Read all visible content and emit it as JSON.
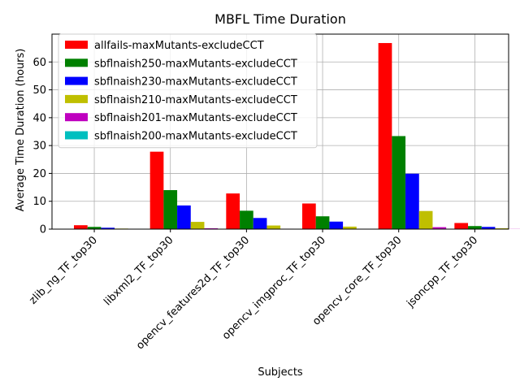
{
  "chart_data": {
    "type": "bar",
    "title": "MBFL Time Duration",
    "xlabel": "Subjects",
    "ylabel": "Average Time Duration (hours)",
    "ylim": [
      0,
      70
    ],
    "yticks": [
      0,
      10,
      20,
      30,
      40,
      50,
      60
    ],
    "grid": true,
    "legend_position": "top-left",
    "categories": [
      "zlib_ng_TF_top30",
      "libxml2_TF_top30",
      "opencv_features2d_TF_top30",
      "opencv_imgproc_TF_top30",
      "opencv_core_TF_top30",
      "jsoncpp_TF_top30"
    ],
    "series": [
      {
        "name": "allfails-maxMutants-excludeCCT",
        "color": "#ff0000",
        "values": [
          1.4,
          27.8,
          12.8,
          9.2,
          66.8,
          2.2
        ]
      },
      {
        "name": "sbflnaish250-maxMutants-excludeCCT",
        "color": "#008000",
        "values": [
          0.8,
          14.0,
          6.6,
          4.6,
          33.4,
          1.1
        ]
      },
      {
        "name": "sbflnaish230-maxMutants-excludeCCT",
        "color": "#0000ff",
        "values": [
          0.5,
          8.5,
          4.0,
          2.7,
          19.9,
          0.8
        ]
      },
      {
        "name": "sbflnaish210-maxMutants-excludeCCT",
        "color": "#bfbf00",
        "values": [
          0.2,
          2.6,
          1.3,
          0.9,
          6.5,
          0.3
        ]
      },
      {
        "name": "sbflnaish201-maxMutants-excludeCCT",
        "color": "#bf00bf",
        "values": [
          0.05,
          0.3,
          0.15,
          0.1,
          0.7,
          0.05
        ]
      },
      {
        "name": "sbflnaish200-maxMutants-excludeCCT",
        "color": "#00bfbf",
        "values": [
          0.0,
          0.0,
          0.0,
          0.0,
          0.0,
          0.0
        ]
      }
    ]
  }
}
